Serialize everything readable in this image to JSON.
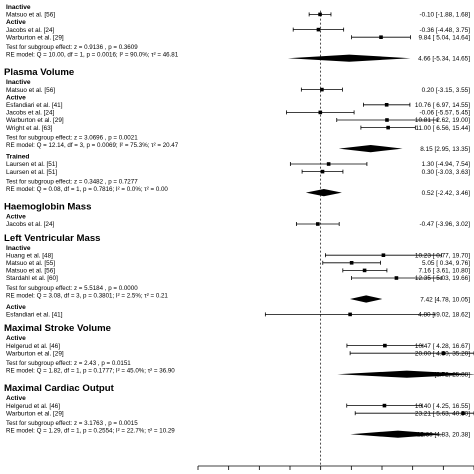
{
  "chart_data": {
    "type": "forest",
    "xlim": [
      -20,
      25
    ],
    "null_line": 0,
    "sections": [
      {
        "title": "",
        "groups": [
          {
            "label": "Inactive",
            "studies": [
              {
                "name": "Matsuo et al. [56]",
                "est": -0.1,
                "lo": -1.88,
                "hi": 1.68,
                "ci_text": "-0.10 [-1.88,  1.68]"
              }
            ]
          },
          {
            "label": "Active",
            "studies": [
              {
                "name": "Jacobs et al. [24]",
                "est": -0.36,
                "lo": -4.48,
                "hi": 3.75,
                "ci_text": "-0.36 [-4.48,  3.75]"
              },
              {
                "name": "Warburton et al. [29]",
                "est": 9.84,
                "lo": 5.04,
                "hi": 14.64,
                "ci_text": "9.84 [ 5.04, 14.64]"
              }
            ],
            "test_lines": [
              "Test for subgroup effect: z = 0.9136 , p = 0.3609",
              "RE model: Q = 10.00, df = 1, p = 0.0016; I² = 90.0%; τ² = 46.81"
            ],
            "summary": {
              "est": 4.66,
              "lo": -5.34,
              "hi": 14.65,
              "ci_text": "4.66 [-5.34, 14.65]"
            }
          }
        ]
      },
      {
        "title": "Plasma Volume",
        "groups": [
          {
            "label": "Inactive",
            "studies": [
              {
                "name": "Matsuo et al. [56]",
                "est": 0.2,
                "lo": -3.15,
                "hi": 3.55,
                "ci_text": "0.20 [-3.15,  3.55]"
              }
            ]
          },
          {
            "label": "Active",
            "studies": [
              {
                "name": "Esfandiari et al. [41]",
                "est": 10.76,
                "lo": 6.97,
                "hi": 14.55,
                "ci_text": "10.76 [ 6.97, 14.55]"
              },
              {
                "name": "Jacobs et al. [24]",
                "est": -0.06,
                "lo": -5.57,
                "hi": 5.45,
                "ci_text": "-0.06 [-5.57,  5.45]"
              },
              {
                "name": "Warburton et al. [29]",
                "est": 10.81,
                "lo": 2.62,
                "hi": 19.0,
                "ci_text": "10.81 [ 2.62, 19.00]"
              },
              {
                "name": "Wright et al. [63]",
                "est": 11.0,
                "lo": 6.56,
                "hi": 15.44,
                "ci_text": "11.00 [ 6.56, 15.44]"
              }
            ],
            "test_lines": [
              "Test for subgroup effect: z = 3.0696 , p = 0.0021",
              "RE model: Q = 12.14, df = 3, p = 0.0069; I² = 75.3%; τ² = 20.47"
            ],
            "summary": {
              "est": 8.15,
              "lo": 2.95,
              "hi": 13.35,
              "ci_text": "8.15 [2.95, 13.35]"
            }
          },
          {
            "label": "Trained",
            "studies": [
              {
                "name": "Laursen et al. [51]",
                "est": 1.3,
                "lo": -4.94,
                "hi": 7.54,
                "ci_text": "1.30 [-4.94,  7.54]"
              },
              {
                "name": "Laursen et al. [51]",
                "est": 0.3,
                "lo": -3.03,
                "hi": 3.63,
                "ci_text": "0.30 [-3.03,  3.63]"
              }
            ],
            "test_lines": [
              "Test for subgroup effect: z = 0.3482 , p = 0.7277",
              "RE model: Q = 0.08, df = 1, p = 0.7816; I² = 0.0%; τ² = 0.00"
            ],
            "summary": {
              "est": 0.52,
              "lo": -2.42,
              "hi": 3.46,
              "ci_text": "0.52 [-2.42, 3.46]"
            }
          }
        ]
      },
      {
        "title": "Haemoglobin Mass",
        "groups": [
          {
            "label": "Active",
            "studies": [
              {
                "name": "Jacobs et al. [24]",
                "est": -0.47,
                "lo": -3.96,
                "hi": 3.02,
                "ci_text": "-0.47 [-3.96,  3.02]"
              }
            ]
          }
        ]
      },
      {
        "title": "Left Ventricular Mass",
        "groups": [
          {
            "label": "Inactive",
            "studies": [
              {
                "name": "Huang et al. [48]",
                "est": 10.23,
                "lo": 0.77,
                "hi": 19.7,
                "ci_text": "10.23 [ 0.77, 19.70]"
              },
              {
                "name": "Matsuo et al. [55]",
                "est": 5.05,
                "lo": 0.34,
                "hi": 9.76,
                "ci_text": "5.05 [ 0.34,  9.76]"
              },
              {
                "name": "Matsuo et al. [56]",
                "est": 7.16,
                "lo": 3.61,
                "hi": 10.8,
                "ci_text": "7.16 [ 3.61, 10.80]"
              },
              {
                "name": "Stardahl et al. [60]",
                "est": 12.35,
                "lo": 5.03,
                "hi": 19.66,
                "ci_text": "12.35 [ 5.03, 19.66]"
              }
            ],
            "test_lines": [
              "Test for subgroup effect: z = 5.5184 , p = 0.0000",
              "RE model: Q = 3.08, df = 3, p = 0.3801; I² = 2.5%; τ² = 0.21"
            ],
            "summary": {
              "est": 7.42,
              "lo": 4.78,
              "hi": 10.05,
              "ci_text": "7.42 [4.78, 10.05]"
            }
          },
          {
            "label": "Active",
            "studies": [
              {
                "name": "Esfandiari et al. [41]",
                "est": 4.8,
                "lo": -9.02,
                "hi": 18.62,
                "ci_text": "4.80 [-9.02, 18.62]"
              }
            ]
          }
        ]
      },
      {
        "title": "Maximal Stroke Volume",
        "groups": [
          {
            "label": "Active",
            "studies": [
              {
                "name": "Helgerud et al. [46]",
                "est": 10.47,
                "lo": 4.28,
                "hi": 16.67,
                "ci_text": "10.47 [ 4.28, 16.67]"
              },
              {
                "name": "Warburton et al. [29]",
                "est": 20.0,
                "lo": 4.8,
                "hi": 35.2,
                "ci_text": "20.00 [ 4.80, 35.20]"
              }
            ],
            "test_lines": [
              "Test for subgroup effect: z = 2.43 , p = 0.0151",
              "RE model: Q = 1.82, df = 1, p = 0.1777; I² = 45.0%; τ² = 36.90"
            ],
            "summary": {
              "est": 14.05,
              "lo": 2.72,
              "hi": 25.38,
              "ci_text": "14.05 [2.72, 25.38]"
            }
          }
        ]
      },
      {
        "title": "Maximal Cardiac Output",
        "groups": [
          {
            "label": "Active",
            "studies": [
              {
                "name": "Helgerud et al. [46]",
                "est": 10.4,
                "lo": 4.25,
                "hi": 16.55,
                "ci_text": "10.40 [ 4.25, 16.55]"
              },
              {
                "name": "Warburton et al. [29]",
                "est": 23.21,
                "lo": 5.63,
                "hi": 40.8,
                "ci_text": "23.21 [ 5.63, 40.80]"
              }
            ],
            "test_lines": [
              "Test for subgroup effect: z = 3.1763 , p = 0.0015",
              "RE model: Q = 1.29, df = 1, p = 0.2554; I² = 22.7%; τ² = 10.29"
            ],
            "summary": {
              "est": 12.6,
              "lo": 4.83,
              "hi": 20.38,
              "ci_text": "12.60 [4.83, 20.38]"
            }
          }
        ]
      }
    ]
  }
}
